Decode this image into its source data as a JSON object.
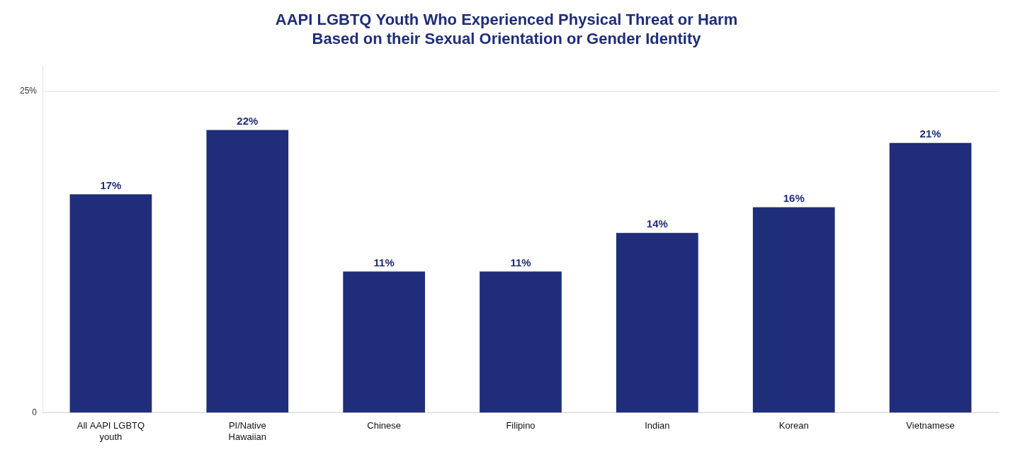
{
  "chart_data": {
    "type": "bar",
    "title": "AAPI LGBTQ Youth Who Experienced Physical Threat or Harm\nBased on their Sexual Orientation or Gender Identity",
    "categories": [
      "All AAPI LGBTQ\nyouth",
      "PI/Native\nHawaiian",
      "Chinese",
      "Filipino",
      "Indian",
      "Korean",
      "Vietnamese"
    ],
    "values": [
      17,
      22,
      11,
      11,
      14,
      16,
      21
    ],
    "value_labels": [
      "17%",
      "22%",
      "11%",
      "11%",
      "14%",
      "16%",
      "21%"
    ],
    "color": "#1F2D7B",
    "ylim": [
      0,
      27
    ],
    "yticks": [
      0,
      {
        "value": 25,
        "label": "25%"
      }
    ],
    "grid": true,
    "data_labels": true
  }
}
